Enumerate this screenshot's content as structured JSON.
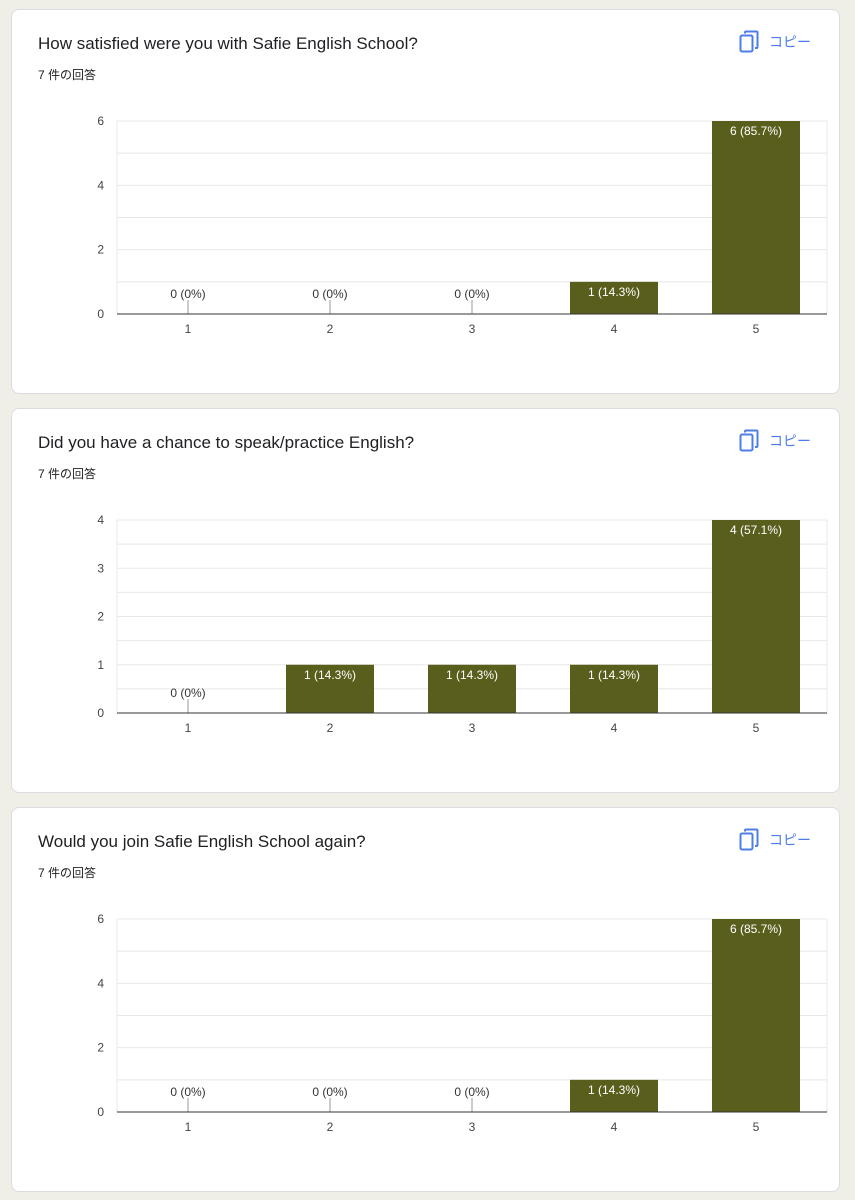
{
  "copy_label": "コピー",
  "bar_color": "#5a5e1d",
  "chart_data": [
    {
      "type": "bar",
      "title": "How satisfied were you with Safie English School?",
      "response_count": "7 件の回答",
      "categories": [
        "1",
        "2",
        "3",
        "4",
        "5"
      ],
      "values": [
        0,
        0,
        0,
        1,
        6
      ],
      "data_labels": [
        "0 (0%)",
        "0 (0%)",
        "0 (0%)",
        "1 (14.3%)",
        "6 (85.7%)"
      ],
      "ylim": [
        0,
        6
      ],
      "yticks": [
        0,
        2,
        4,
        6
      ],
      "grid_step": 1
    },
    {
      "type": "bar",
      "title": "Did you have a chance to speak/practice English?",
      "response_count": "7 件の回答",
      "categories": [
        "1",
        "2",
        "3",
        "4",
        "5"
      ],
      "values": [
        0,
        1,
        1,
        1,
        4
      ],
      "data_labels": [
        "0 (0%)",
        "1 (14.3%)",
        "1 (14.3%)",
        "1 (14.3%)",
        "4 (57.1%)"
      ],
      "ylim": [
        0,
        4
      ],
      "yticks": [
        0,
        1,
        2,
        3,
        4
      ],
      "grid_step": 0.5
    },
    {
      "type": "bar",
      "title": "Would you join Safie English School again?",
      "response_count": "7 件の回答",
      "categories": [
        "1",
        "2",
        "3",
        "4",
        "5"
      ],
      "values": [
        0,
        0,
        0,
        1,
        6
      ],
      "data_labels": [
        "0 (0%)",
        "0 (0%)",
        "0 (0%)",
        "1 (14.3%)",
        "6 (85.7%)"
      ],
      "ylim": [
        0,
        6
      ],
      "yticks": [
        0,
        2,
        4,
        6
      ],
      "grid_step": 1
    }
  ]
}
